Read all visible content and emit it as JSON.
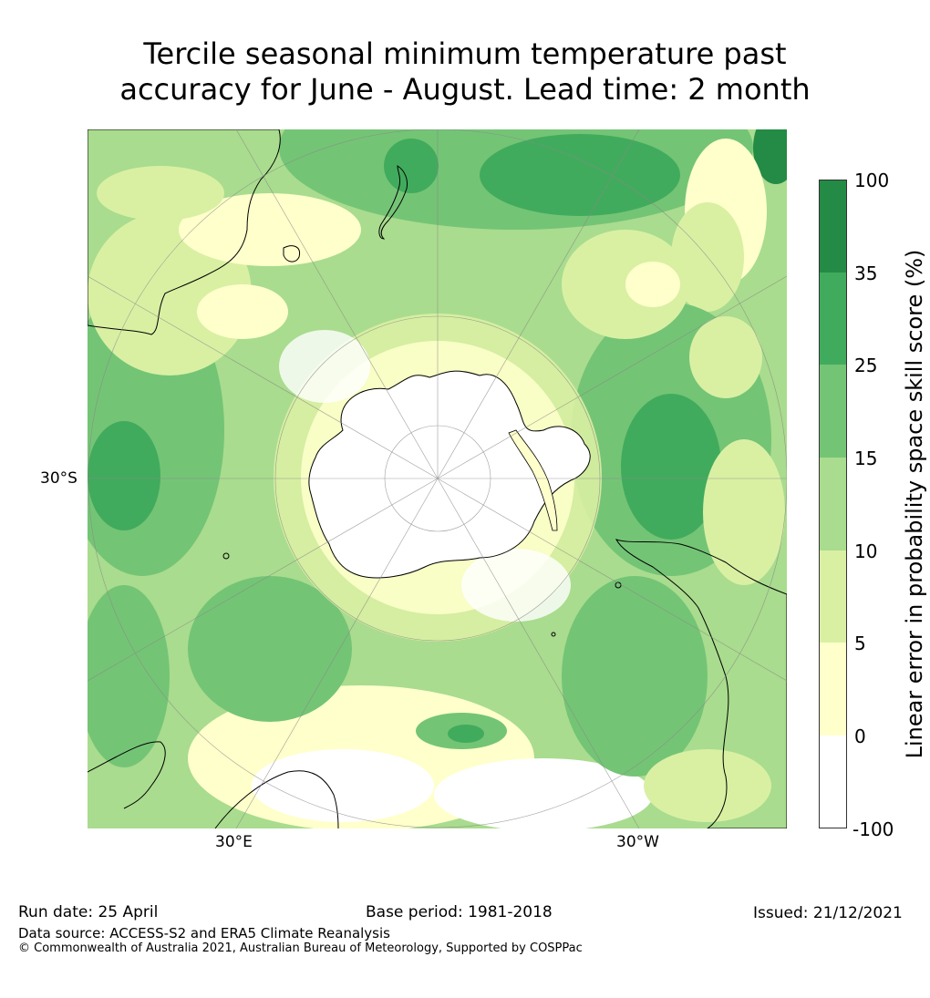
{
  "title_line1": "Tercile seasonal minimum temperature past",
  "title_line2": "accuracy for June - August. Lead time: 2 month",
  "map": {
    "projection": "south-polar-stereographic",
    "labels": {
      "left_lat": "30°S",
      "bottom_left_lon": "30°E",
      "bottom_right_lon": "30°W"
    },
    "colors": {
      "land_outline": "#000000",
      "antarctica": "#ffffff",
      "grid": "#888888"
    }
  },
  "colorbar": {
    "title": "Linear error in probability space skill score (%)",
    "ticks": [
      "100",
      "35",
      "25",
      "15",
      "10",
      "5",
      "0",
      "-100"
    ],
    "bins": [
      {
        "range": "35-100",
        "color": "#238b45"
      },
      {
        "range": "25-35",
        "color": "#41ab5d"
      },
      {
        "range": "15-25",
        "color": "#74c476"
      },
      {
        "range": "10-15",
        "color": "#a9dc8e"
      },
      {
        "range": "5-10",
        "color": "#d9f0a3"
      },
      {
        "range": "0-5",
        "color": "#ffffcc"
      },
      {
        "range": "-100-0",
        "color": "#ffffff"
      }
    ]
  },
  "footer": {
    "run_date": "Run date: 25 April",
    "base_period": "Base period: 1981-2018",
    "issued": "Issued: 21/12/2021",
    "data_source": "Data source: ACCESS-S2 and ERA5 Climate Reanalysis",
    "copyright": "© Commonwealth of Australia 2021, Australian Bureau of Meteorology, Supported by COSPPac"
  }
}
